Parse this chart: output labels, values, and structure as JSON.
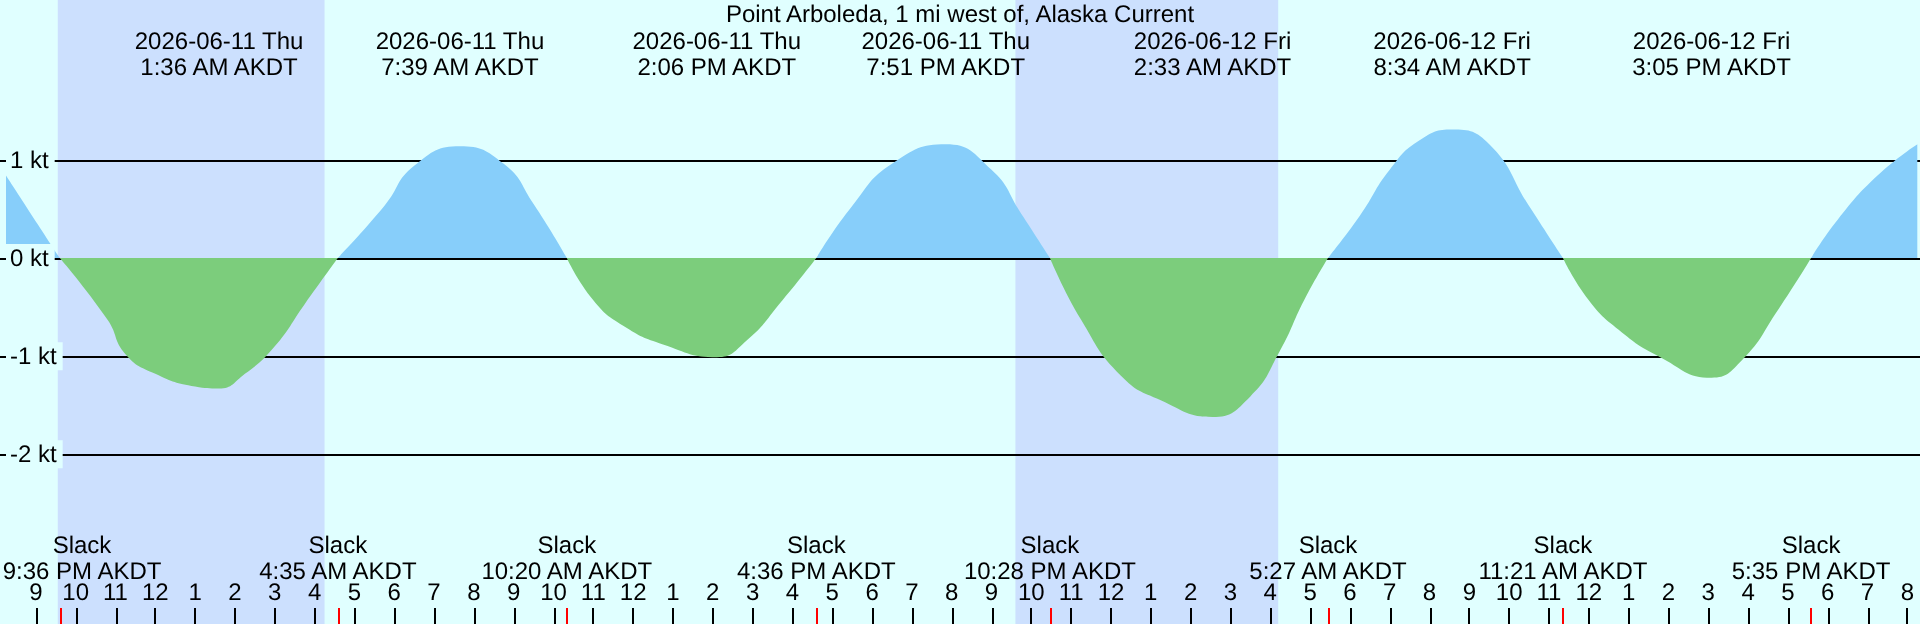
{
  "chart_data": {
    "type": "area",
    "title": "Point Arboleda, 1 mi west of, Alaska Current",
    "xlim": [
      "2026-06-10T20:15",
      "2026-06-12T20:15"
    ],
    "ylim": [
      -3.73,
      2.63
    ],
    "xticks": [
      {
        "value": "2026-06-10T21:00",
        "label": "9"
      },
      {
        "value": "2026-06-10T22:00",
        "label": "10"
      },
      {
        "value": "2026-06-10T23:00",
        "label": "11"
      },
      {
        "value": "2026-06-11T00:00",
        "label": "12"
      },
      {
        "value": "2026-06-11T01:00",
        "label": "1"
      },
      {
        "value": "2026-06-11T02:00",
        "label": "2"
      },
      {
        "value": "2026-06-11T03:00",
        "label": "3"
      },
      {
        "value": "2026-06-11T04:00",
        "label": "4"
      },
      {
        "value": "2026-06-11T05:00",
        "label": "5"
      },
      {
        "value": "2026-06-11T06:00",
        "label": "6"
      },
      {
        "value": "2026-06-11T07:00",
        "label": "7"
      },
      {
        "value": "2026-06-11T08:00",
        "label": "8"
      },
      {
        "value": "2026-06-11T09:00",
        "label": "9"
      },
      {
        "value": "2026-06-11T10:00",
        "label": "10"
      },
      {
        "value": "2026-06-11T11:00",
        "label": "11"
      },
      {
        "value": "2026-06-11T12:00",
        "label": "12"
      },
      {
        "value": "2026-06-11T13:00",
        "label": "1"
      },
      {
        "value": "2026-06-11T14:00",
        "label": "2"
      },
      {
        "value": "2026-06-11T15:00",
        "label": "3"
      },
      {
        "value": "2026-06-11T16:00",
        "label": "4"
      },
      {
        "value": "2026-06-11T17:00",
        "label": "5"
      },
      {
        "value": "2026-06-11T18:00",
        "label": "6"
      },
      {
        "value": "2026-06-11T19:00",
        "label": "7"
      },
      {
        "value": "2026-06-11T20:00",
        "label": "8"
      },
      {
        "value": "2026-06-11T21:00",
        "label": "9"
      },
      {
        "value": "2026-06-11T22:00",
        "label": "10"
      },
      {
        "value": "2026-06-11T23:00",
        "label": "11"
      },
      {
        "value": "2026-06-12T00:00",
        "label": "12"
      },
      {
        "value": "2026-06-12T01:00",
        "label": "1"
      },
      {
        "value": "2026-06-12T02:00",
        "label": "2"
      },
      {
        "value": "2026-06-12T03:00",
        "label": "3"
      },
      {
        "value": "2026-06-12T04:00",
        "label": "4"
      },
      {
        "value": "2026-06-12T05:00",
        "label": "5"
      },
      {
        "value": "2026-06-12T06:00",
        "label": "6"
      },
      {
        "value": "2026-06-12T07:00",
        "label": "7"
      },
      {
        "value": "2026-06-12T08:00",
        "label": "8"
      },
      {
        "value": "2026-06-12T09:00",
        "label": "9"
      },
      {
        "value": "2026-06-12T10:00",
        "label": "10"
      },
      {
        "value": "2026-06-12T11:00",
        "label": "11"
      },
      {
        "value": "2026-06-12T12:00",
        "label": "12"
      },
      {
        "value": "2026-06-12T13:00",
        "label": "1"
      },
      {
        "value": "2026-06-12T14:00",
        "label": "2"
      },
      {
        "value": "2026-06-12T15:00",
        "label": "3"
      },
      {
        "value": "2026-06-12T16:00",
        "label": "4"
      },
      {
        "value": "2026-06-12T17:00",
        "label": "5"
      },
      {
        "value": "2026-06-12T18:00",
        "label": "6"
      },
      {
        "value": "2026-06-12T19:00",
        "label": "7"
      },
      {
        "value": "2026-06-12T20:00",
        "label": "8"
      }
    ],
    "yticks": [
      {
        "value": 1,
        "label": "1 kt"
      },
      {
        "value": 0,
        "label": "0 kt"
      },
      {
        "value": -1,
        "label": "-1 kt"
      },
      {
        "value": -2,
        "label": "-2 kt"
      }
    ],
    "grid": "y",
    "bands": [
      {
        "axis": "x",
        "from": "2026-06-10T21:33",
        "to": "2026-06-11T04:15",
        "color": "#cce0fe"
      },
      {
        "axis": "x",
        "from": "2026-06-11T21:36",
        "to": "2026-06-12T04:12",
        "color": "#cce0fe"
      }
    ],
    "series": [
      {
        "color": "#87cefa",
        "x": [
          "2026-06-10T20:15",
          "2026-06-10T21:36",
          "2026-06-11T00:00",
          "2026-06-11T04:35",
          "2026-06-11T05:45",
          "2026-06-11T06:30",
          "2026-06-11T07:39",
          "2026-06-11T08:45",
          "2026-06-11T09:30",
          "2026-06-11T10:20",
          "2026-06-11T13:00",
          "2026-06-11T16:36",
          "2026-06-11T17:30",
          "2026-06-11T18:30",
          "2026-06-11T19:51",
          "2026-06-11T21:00",
          "2026-06-11T21:45",
          "2026-06-11T22:28",
          "2026-06-12T02:00",
          "2026-06-12T05:27",
          "2026-06-12T06:15",
          "2026-06-12T07:00",
          "2026-06-12T07:45",
          "2026-06-12T08:34",
          "2026-06-12T09:30",
          "2026-06-12T10:30",
          "2026-06-12T11:21",
          "2026-06-12T14:00",
          "2026-06-12T17:35",
          "2026-06-12T18:15",
          "2026-06-12T19:15",
          "2026-06-12T20:15"
        ],
        "values": [
          0.84,
          0,
          null,
          0,
          0.53,
          0.94,
          1.14,
          0.96,
          0.55,
          0,
          null,
          0,
          0.53,
          0.96,
          1.16,
          0.9,
          0.45,
          0,
          null,
          0,
          0.43,
          0.9,
          1.2,
          1.31,
          1.16,
          0.53,
          0,
          null,
          0,
          0.39,
          0.84,
          1.16
        ]
      },
      {
        "color": "#7ccd7c",
        "x": [
          "2026-06-10T21:36",
          "2026-06-10T22:48",
          "2026-06-10T23:15",
          "2026-06-11T00:00",
          "2026-06-11T01:00",
          "2026-06-11T01:36",
          "2026-06-11T02:15",
          "2026-06-11T03:00",
          "2026-06-11T03:45",
          "2026-06-11T04:35",
          "2026-06-11T07:39",
          "2026-06-11T10:20",
          "2026-06-11T11:00",
          "2026-06-11T11:45",
          "2026-06-11T12:45",
          "2026-06-11T14:06",
          "2026-06-11T14:51",
          "2026-06-11T15:45",
          "2026-06-11T16:36",
          "2026-06-11T19:51",
          "2026-06-11T22:28",
          "2026-06-11T23:15",
          "2026-06-12T00:15",
          "2026-06-12T01:15",
          "2026-06-12T02:33",
          "2026-06-12T03:30",
          "2026-06-12T04:15",
          "2026-06-12T04:51",
          "2026-06-12T05:27",
          "2026-06-12T08:34",
          "2026-06-12T11:21",
          "2026-06-12T12:00",
          "2026-06-12T12:45",
          "2026-06-12T13:45",
          "2026-06-12T15:05",
          "2026-06-12T15:51",
          "2026-06-12T16:45",
          "2026-06-12T17:35"
        ],
        "values": [
          0,
          -0.63,
          -0.98,
          -1.18,
          -1.31,
          -1.33,
          -1.18,
          -0.9,
          -0.47,
          0,
          null,
          0,
          -0.43,
          -0.69,
          -0.88,
          -1.01,
          -0.84,
          -0.43,
          0,
          null,
          0,
          -0.63,
          -1.2,
          -1.45,
          -1.62,
          -1.41,
          -0.94,
          -0.43,
          0,
          null,
          0,
          -0.43,
          -0.73,
          -1.0,
          -1.22,
          -1.04,
          -0.53,
          0
        ]
      }
    ],
    "annotations": [
      "2026-06-11 Thu\n1:36 AM AKDT",
      "2026-06-11 Thu\n7:39 AM AKDT",
      "2026-06-11 Thu\n2:06 PM AKDT",
      "2026-06-11 Thu\n7:51 PM AKDT",
      "2026-06-12 Fri\n2:33 AM AKDT",
      "2026-06-12 Fri\n8:34 AM AKDT",
      "2026-06-12 Fri\n3:05 PM AKDT",
      "Slack\n9:36 PM AKDT",
      "Slack\n4:35 AM AKDT",
      "Slack\n10:20 AM AKDT",
      "Slack\n4:36 PM AKDT",
      "Slack\n10:28 PM AKDT",
      "Slack\n5:27 AM AKDT",
      "Slack\n11:21 AM AKDT",
      "Slack\n5:35 PM AKDT"
    ]
  }
}
